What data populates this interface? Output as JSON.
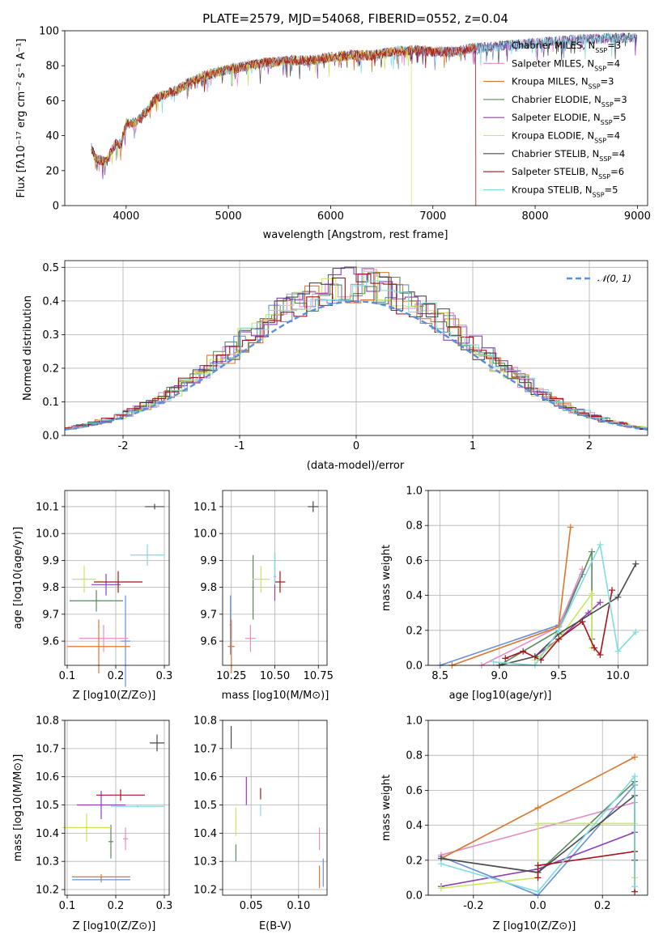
{
  "colors": {
    "chabrier_miles": "#6b8fd6",
    "salpeter_miles": "#e68cc5",
    "kroupa_miles": "#d9782d",
    "chabrier_elodie": "#5a8a5e",
    "salpeter_elodie": "#8f3fb5",
    "kroupa_elodie": "#c8e85a",
    "chabrier_stelib": "#4a4a4a",
    "salpeter_stelib": "#a3141c",
    "kroupa_stelib": "#7fdde0",
    "gauss": "#5b8fd6"
  },
  "chart_data": [
    {
      "id": "spectrum",
      "type": "line",
      "title": "PLATE=2579, MJD=54068, FIBERID=0552, z=0.04",
      "xlabel": "wavelength [Angstrom, rest frame]",
      "ylabel": "Flux [fλ10⁻¹⁷ erg cm⁻² s⁻¹ A⁻¹]",
      "xlim": [
        3400,
        9100
      ],
      "ylim": [
        0,
        100
      ],
      "xticks": [
        4000,
        5000,
        6000,
        7000,
        8000,
        9000
      ],
      "yticks": [
        0,
        20,
        40,
        60,
        80,
        100
      ],
      "legend": [
        "Chabrier MILES, N_SSP=3",
        "Salpeter MILES, N_SSP=4",
        "Kroupa MILES, N_SSP=3",
        "Chabrier ELODIE, N_SSP=3",
        "Salpeter ELODIE, N_SSP=5",
        "Kroupa ELODIE, N_SSP=4",
        "Chabrier STELIB, N_SSP=4",
        "Salpeter STELIB, N_SSP=6",
        "Kroupa STELIB, N_SSP=5"
      ],
      "legend_position": "top-right",
      "envelope": {
        "x": [
          3650,
          3700,
          3800,
          3900,
          3950,
          4000,
          4100,
          4200,
          4300,
          4400,
          4500,
          4600,
          4800,
          5000,
          5200,
          5400,
          5600,
          5800,
          6000,
          6200,
          6400,
          6600,
          6800,
          7000,
          7200,
          7400,
          7600,
          8000,
          8400,
          8800,
          9000
        ],
        "y": [
          35,
          27,
          25,
          36,
          35,
          47,
          48,
          54,
          62,
          64,
          66,
          70,
          75,
          78,
          80,
          82,
          83,
          83,
          85,
          86,
          86,
          88,
          89,
          88,
          88,
          90,
          91,
          93,
          95,
          96,
          96
        ]
      },
      "cutoffs": [
        {
          "series": 5,
          "x_end": 6790
        },
        {
          "series": 2,
          "x_end": 7420
        },
        {
          "series": 7,
          "x_end": 7420
        },
        {
          "series": 3,
          "x_end": 3920
        }
      ],
      "grid": false
    },
    {
      "id": "residuals",
      "type": "step",
      "xlabel": "(data-model)/error",
      "ylabel": "Normed distribution",
      "xlim": [
        -2.5,
        2.5
      ],
      "ylim": [
        0,
        0.52
      ],
      "xticks": [
        -2,
        -1,
        0,
        1,
        2
      ],
      "yticks": [
        0.0,
        0.1,
        0.2,
        0.3,
        0.4,
        0.5
      ],
      "gauss_label": "𝒩(0, 1)",
      "grid": true
    },
    {
      "id": "z-age",
      "type": "errorbar",
      "xlabel": "Z [log10(Z/Z⊙)]",
      "ylabel": "age  [log10(age/yr)]",
      "xlim": [
        0.095,
        0.31
      ],
      "ylim": [
        9.51,
        10.16
      ],
      "xticks": [
        0.1,
        0.2,
        0.3
      ],
      "yticks": [
        9.6,
        9.7,
        9.8,
        9.9,
        10.0,
        10.1
      ],
      "points": [
        {
          "series": 0,
          "x": 0.22,
          "xerr": 0.01,
          "y": 9.6,
          "yerr": 0.17
        },
        {
          "series": 1,
          "x": 0.175,
          "xerr": 0.05,
          "y": 9.61,
          "yerr": 0.05
        },
        {
          "series": 2,
          "x": 0.165,
          "xerr": 0.065,
          "y": 9.58,
          "yerr": 0.1
        },
        {
          "series": 3,
          "x": 0.16,
          "xerr": 0.055,
          "y": 9.75,
          "yerr": 0.04
        },
        {
          "series": 4,
          "x": 0.18,
          "xerr": 0.03,
          "y": 9.81,
          "yerr": 0.04
        },
        {
          "series": 5,
          "x": 0.135,
          "xerr": 0.025,
          "y": 9.83,
          "yerr": 0.05
        },
        {
          "series": 6,
          "x": 0.28,
          "xerr": 0.02,
          "y": 10.1,
          "yerr": 0.01
        },
        {
          "series": 7,
          "x": 0.205,
          "xerr": 0.05,
          "y": 9.82,
          "yerr": 0.04
        },
        {
          "series": 8,
          "x": 0.265,
          "xerr": 0.035,
          "y": 9.92,
          "yerr": 0.04
        }
      ],
      "grid": true
    },
    {
      "id": "mass-age",
      "type": "errorbar",
      "xlabel": "mass [log10(M/M⊙)]",
      "xlim": [
        10.2,
        10.8
      ],
      "ylim": [
        9.51,
        10.16
      ],
      "xticks": [
        10.25,
        10.5,
        10.75
      ],
      "yticks": [
        9.6,
        9.7,
        9.8,
        9.9,
        10.0,
        10.1
      ],
      "points": [
        {
          "series": 0,
          "x": 10.245,
          "xerr": 0.005,
          "y": 9.66,
          "yerr": 0.11
        },
        {
          "series": 1,
          "x": 10.36,
          "xerr": 0.03,
          "y": 9.61,
          "yerr": 0.05
        },
        {
          "series": 2,
          "x": 10.25,
          "xerr": 0.02,
          "y": 9.58,
          "yerr": 0.1
        },
        {
          "series": 3,
          "x": 10.375,
          "xerr": 0.005,
          "y": 9.8,
          "yerr": 0.12
        },
        {
          "series": 4,
          "x": 10.5,
          "xerr": 0.005,
          "y": 9.84,
          "yerr": 0.09
        },
        {
          "series": 5,
          "x": 10.42,
          "xerr": 0.05,
          "y": 9.83,
          "yerr": 0.05
        },
        {
          "series": 6,
          "x": 10.72,
          "xerr": 0.03,
          "y": 10.1,
          "yerr": 0.02
        },
        {
          "series": 7,
          "x": 10.53,
          "xerr": 0.03,
          "y": 9.82,
          "yerr": 0.04
        },
        {
          "series": 8,
          "x": 10.5,
          "xerr": 0.005,
          "y": 9.87,
          "yerr": 0.06
        }
      ],
      "grid": true
    },
    {
      "id": "weights-age",
      "type": "line",
      "xlabel": "age  [log10(age/yr)]",
      "ylabel": "mass weight",
      "xlim": [
        8.4,
        10.25
      ],
      "ylim": [
        0,
        1
      ],
      "xticks": [
        8.5,
        9.0,
        9.5,
        10.0
      ],
      "yticks": [
        0.0,
        0.2,
        0.4,
        0.6,
        0.8,
        1.0
      ],
      "series": [
        {
          "series": 0,
          "x": [
            8.5,
            9.5,
            9.7
          ],
          "y": [
            0.0,
            0.23,
            0.52
          ]
        },
        {
          "series": 1,
          "x": [
            8.85,
            9.5,
            9.7
          ],
          "y": [
            0.0,
            0.22,
            0.55
          ]
        },
        {
          "series": 2,
          "x": [
            8.6,
            9.5,
            9.6
          ],
          "y": [
            0.0,
            0.22,
            0.79
          ]
        },
        {
          "series": 3,
          "x": [
            9.0,
            9.5,
            9.78,
            9.78
          ],
          "y": [
            0.0,
            0.2,
            0.65,
            0.15
          ]
        },
        {
          "series": 4,
          "x": [
            9.3,
            9.5,
            9.75,
            9.85
          ],
          "y": [
            0.05,
            0.15,
            0.3,
            0.36
          ]
        },
        {
          "series": 5,
          "x": [
            9.3,
            9.5,
            9.78,
            9.78
          ],
          "y": [
            0.03,
            0.15,
            0.41,
            0.1
          ]
        },
        {
          "series": 6,
          "x": [
            9.0,
            9.3,
            9.5,
            10.0,
            10.15
          ],
          "y": [
            0.0,
            0.05,
            0.18,
            0.39,
            0.58
          ]
        },
        {
          "series": 7,
          "x": [
            9.05,
            9.2,
            9.35,
            9.5,
            9.7,
            9.8,
            9.85,
            9.95
          ],
          "y": [
            0.04,
            0.08,
            0.03,
            0.15,
            0.25,
            0.1,
            0.06,
            0.43
          ]
        },
        {
          "series": 8,
          "x": [
            8.95,
            9.3,
            9.5,
            9.85,
            10.0,
            10.15
          ],
          "y": [
            0.02,
            0.0,
            0.2,
            0.69,
            0.08,
            0.19
          ]
        }
      ],
      "grid": true
    },
    {
      "id": "z-mass",
      "type": "errorbar",
      "xlabel": "Z [log10(Z/Z⊙)]",
      "ylabel": "mass [log10(M/M⊙)]",
      "xlim": [
        0.095,
        0.31
      ],
      "ylim": [
        10.18,
        10.8
      ],
      "xticks": [
        0.1,
        0.2,
        0.3
      ],
      "yticks": [
        10.2,
        10.3,
        10.4,
        10.5,
        10.6,
        10.7,
        10.8
      ],
      "points": [
        {
          "series": 0,
          "x": 0.17,
          "xerr": 0.06,
          "y": 10.235,
          "yerr": 0.01
        },
        {
          "series": 1,
          "x": 0.22,
          "xerr": 0.005,
          "y": 10.38,
          "yerr": 0.04
        },
        {
          "series": 2,
          "x": 0.17,
          "xerr": 0.06,
          "y": 10.245,
          "yerr": 0.01
        },
        {
          "series": 3,
          "x": 0.19,
          "xerr": 0.005,
          "y": 10.37,
          "yerr": 0.06
        },
        {
          "series": 4,
          "x": 0.17,
          "xerr": 0.05,
          "y": 10.5,
          "yerr": 0.05
        },
        {
          "series": 5,
          "x": 0.14,
          "xerr": 0.05,
          "y": 10.42,
          "yerr": 0.05
        },
        {
          "series": 6,
          "x": 0.285,
          "xerr": 0.015,
          "y": 10.72,
          "yerr": 0.03
        },
        {
          "series": 7,
          "x": 0.21,
          "xerr": 0.05,
          "y": 10.535,
          "yerr": 0.02
        },
        {
          "series": 8,
          "x": 0.245,
          "xerr": 0.055,
          "y": 10.495,
          "yerr": 0.005
        }
      ],
      "grid": true
    },
    {
      "id": "ebv-mass",
      "type": "errorbar",
      "xlabel": "E(B-V)",
      "xlim": [
        0.02,
        0.13
      ],
      "ylim": [
        10.18,
        10.8
      ],
      "xticks": [
        0.05,
        0.1
      ],
      "yticks": [
        10.2,
        10.3,
        10.4,
        10.5,
        10.6,
        10.7,
        10.8
      ],
      "points": [
        {
          "series": 0,
          "x": 0.126,
          "xerr": 0,
          "y": 10.26,
          "yerr": 0.05
        },
        {
          "series": 1,
          "x": 0.122,
          "xerr": 0,
          "y": 10.38,
          "yerr": 0.04
        },
        {
          "series": 2,
          "x": 0.122,
          "xerr": 0,
          "y": 10.245,
          "yerr": 0.04
        },
        {
          "series": 3,
          "x": 0.034,
          "xerr": 0,
          "y": 10.33,
          "yerr": 0.03
        },
        {
          "series": 4,
          "x": 0.045,
          "xerr": 0,
          "y": 10.55,
          "yerr": 0.05
        },
        {
          "series": 5,
          "x": 0.034,
          "xerr": 0,
          "y": 10.44,
          "yerr": 0.05
        },
        {
          "series": 6,
          "x": 0.029,
          "xerr": 0,
          "y": 10.74,
          "yerr": 0.04
        },
        {
          "series": 7,
          "x": 0.06,
          "xerr": 0,
          "y": 10.54,
          "yerr": 0.02
        },
        {
          "series": 8,
          "x": 0.06,
          "xerr": 0,
          "y": 10.48,
          "yerr": 0.02
        }
      ],
      "grid": true
    },
    {
      "id": "weights-z",
      "type": "line",
      "xlabel": "Z [log10(Z/Z⊙)]",
      "ylabel": "mass weight",
      "xlim": [
        -0.34,
        0.34
      ],
      "ylim": [
        0,
        1
      ],
      "xticks": [
        -0.2,
        0.0,
        0.2
      ],
      "yticks": [
        0.0,
        0.2,
        0.4,
        0.6,
        0.8,
        1.0
      ],
      "series": [
        {
          "series": 0,
          "x": [
            -0.3,
            0.0,
            0.3
          ],
          "y": [
            0.22,
            0.0,
            0.63
          ]
        },
        {
          "series": 1,
          "x": [
            -0.3,
            0.3
          ],
          "y": [
            0.23,
            0.53
          ]
        },
        {
          "series": 2,
          "x": [
            -0.3,
            0.0,
            0.3
          ],
          "y": [
            0.21,
            0.5,
            0.79
          ]
        },
        {
          "series": 3,
          "x": [
            -0.3,
            0.0,
            0.3,
            0.3
          ],
          "y": [
            0.21,
            0.13,
            0.65,
            0.25
          ]
        },
        {
          "series": 4,
          "x": [
            -0.3,
            0.0,
            0.3
          ],
          "y": [
            0.05,
            0.15,
            0.36
          ]
        },
        {
          "series": 5,
          "x": [
            -0.3,
            0.0,
            0.0,
            0.3,
            0.3
          ],
          "y": [
            0.04,
            0.1,
            0.41,
            0.41,
            0.1
          ]
        },
        {
          "series": 6,
          "x": [
            -0.3,
            0.0,
            0.3,
            0.3
          ],
          "y": [
            0.21,
            0.13,
            0.57,
            0.2
          ]
        },
        {
          "series": 7,
          "x": [
            0.0,
            0.0,
            0.3,
            0.3
          ],
          "y": [
            0.1,
            0.17,
            0.25,
            0.02
          ]
        },
        {
          "series": 8,
          "x": [
            -0.3,
            0.0,
            0.3,
            0.3
          ],
          "y": [
            0.18,
            0.02,
            0.68,
            0.05
          ]
        }
      ],
      "grid": true
    }
  ]
}
